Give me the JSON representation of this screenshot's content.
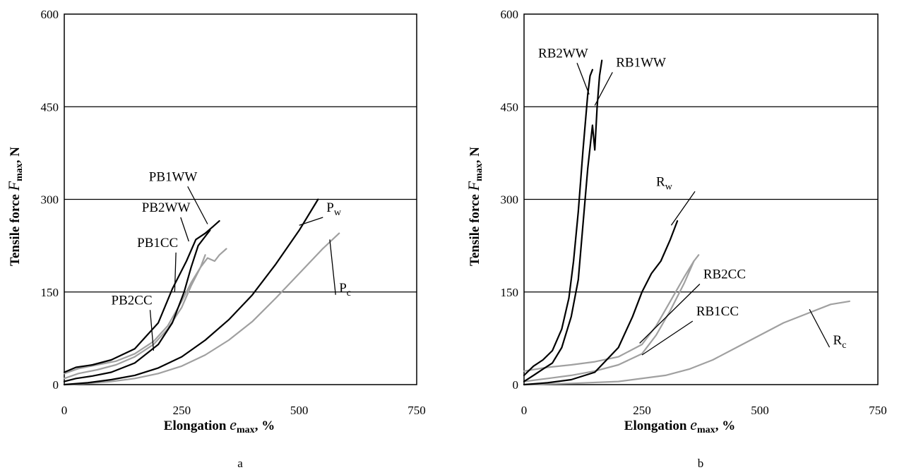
{
  "chart_data": [
    {
      "type": "line",
      "panel_label": "a",
      "xlabel": {
        "pre": "Elongation ",
        "sym": "e",
        "sub": "max",
        "post": ", %"
      },
      "ylabel": {
        "pre": "Tensile force  ",
        "sym": "F",
        "sub": "max",
        "post": ", N"
      },
      "xlim": [
        0,
        750
      ],
      "ylim": [
        0,
        600
      ],
      "xticks": [
        0,
        250,
        500,
        750
      ],
      "yticks": [
        0,
        150,
        300,
        450,
        600
      ],
      "grid": "horizontal",
      "colors": {
        "black": "#000000",
        "gray": "#a0a0a0"
      },
      "series": [
        {
          "name": "PB1WW",
          "color": "black",
          "x": [
            0,
            25,
            60,
            100,
            150,
            200,
            230,
            260,
            280,
            300,
            315,
            330
          ],
          "y": [
            20,
            28,
            32,
            40,
            58,
            100,
            155,
            200,
            235,
            245,
            255,
            265
          ],
          "label_pos": [
            180,
            330
          ],
          "leader_to": [
            305,
            260
          ]
        },
        {
          "name": "PB2WW",
          "color": "black",
          "x": [
            0,
            25,
            60,
            100,
            150,
            200,
            230,
            255,
            270,
            285,
            300,
            310
          ],
          "y": [
            5,
            10,
            14,
            20,
            35,
            65,
            100,
            150,
            190,
            225,
            240,
            250
          ],
          "label_pos": [
            165,
            280
          ],
          "leader_to": [
            265,
            232
          ]
        },
        {
          "name": "PB1CC",
          "color": "gray",
          "x": [
            0,
            30,
            70,
            110,
            150,
            190,
            220,
            250,
            270,
            290,
            305,
            320,
            330,
            345
          ],
          "y": [
            18,
            26,
            32,
            38,
            50,
            70,
            95,
            135,
            165,
            190,
            205,
            200,
            210,
            220
          ],
          "label_pos": [
            155,
            223
          ],
          "leader_to": [
            235,
            150
          ]
        },
        {
          "name": "PB2CC",
          "color": "gray",
          "x": [
            0,
            30,
            70,
            110,
            150,
            190,
            220,
            250,
            270,
            290,
            300
          ],
          "y": [
            10,
            18,
            24,
            32,
            45,
            65,
            90,
            125,
            160,
            190,
            210
          ],
          "label_pos": [
            100,
            130
          ],
          "leader_to": [
            190,
            55
          ]
        },
        {
          "name": "Pw",
          "sub": "w",
          "color": "black",
          "x": [
            0,
            50,
            100,
            150,
            200,
            250,
            300,
            350,
            400,
            450,
            500,
            540
          ],
          "y": [
            0,
            3,
            8,
            15,
            27,
            45,
            72,
            105,
            145,
            195,
            250,
            300
          ],
          "label_pos": [
            558,
            280
          ],
          "leader_to": [
            500,
            258
          ]
        },
        {
          "name": "Pc",
          "sub": "c",
          "color": "gray",
          "x": [
            0,
            50,
            100,
            150,
            200,
            250,
            300,
            350,
            400,
            450,
            500,
            550,
            585
          ],
          "y": [
            0,
            2,
            5,
            10,
            18,
            30,
            48,
            72,
            102,
            140,
            180,
            220,
            245
          ],
          "label_pos": [
            585,
            150
          ],
          "leader_to": [
            565,
            235
          ]
        }
      ]
    },
    {
      "type": "line",
      "panel_label": "b",
      "xlabel": {
        "pre": "Elongation ",
        "sym": "e",
        "sub": "max",
        "post": ", %"
      },
      "ylabel": {
        "pre": "Tensile force  ",
        "sym": "F",
        "sub": "max",
        "post": ", N"
      },
      "xlim": [
        0,
        750
      ],
      "ylim": [
        0,
        600
      ],
      "xticks": [
        0,
        250,
        500,
        750
      ],
      "yticks": [
        0,
        150,
        300,
        450,
        600
      ],
      "grid": "horizontal",
      "colors": {
        "black": "#000000",
        "gray": "#a0a0a0"
      },
      "series": [
        {
          "name": "RB2WW",
          "color": "black",
          "x": [
            0,
            20,
            40,
            60,
            80,
            95,
            105,
            115,
            125,
            135,
            140,
            145
          ],
          "y": [
            15,
            30,
            40,
            55,
            90,
            140,
            200,
            280,
            380,
            470,
            500,
            510
          ],
          "label_pos": [
            30,
            530
          ],
          "leader_to": [
            138,
            470
          ]
        },
        {
          "name": "RB1WW",
          "color": "black",
          "x": [
            0,
            20,
            40,
            60,
            80,
            100,
            115,
            125,
            135,
            145,
            150,
            155,
            160,
            165
          ],
          "y": [
            5,
            15,
            25,
            35,
            60,
            110,
            170,
            260,
            350,
            420,
            380,
            450,
            500,
            525
          ],
          "label_pos": [
            195,
            515
          ],
          "leader_to": [
            150,
            452
          ]
        },
        {
          "name": "Rw",
          "sub": "w",
          "color": "black",
          "x": [
            0,
            50,
            100,
            150,
            200,
            230,
            250,
            270,
            290,
            310,
            325
          ],
          "y": [
            0,
            3,
            8,
            20,
            60,
            110,
            150,
            180,
            200,
            235,
            265
          ],
          "label_pos": [
            280,
            322
          ],
          "leader_to": [
            312,
            258
          ]
        },
        {
          "name": "RB2CC",
          "color": "gray",
          "x": [
            0,
            50,
            100,
            150,
            200,
            250,
            280,
            310,
            340,
            360,
            370
          ],
          "y": [
            22,
            28,
            32,
            37,
            45,
            65,
            95,
            135,
            175,
            200,
            210
          ],
          "label_pos": [
            380,
            172
          ],
          "leader_to": [
            245,
            67
          ]
        },
        {
          "name": "RB1CC",
          "color": "gray",
          "x": [
            0,
            50,
            100,
            150,
            200,
            250,
            280,
            310,
            340,
            360
          ],
          "y": [
            5,
            10,
            15,
            22,
            32,
            50,
            80,
            120,
            165,
            200
          ],
          "label_pos": [
            365,
            112
          ],
          "leader_to": [
            250,
            48
          ]
        },
        {
          "name": "Rc",
          "sub": "c",
          "color": "gray",
          "x": [
            0,
            100,
            200,
            300,
            350,
            400,
            450,
            500,
            550,
            600,
            650,
            690
          ],
          "y": [
            0,
            2,
            5,
            15,
            25,
            40,
            60,
            80,
            100,
            115,
            130,
            135
          ],
          "label_pos": [
            655,
            65
          ],
          "leader_to": [
            605,
            122
          ]
        }
      ]
    }
  ]
}
